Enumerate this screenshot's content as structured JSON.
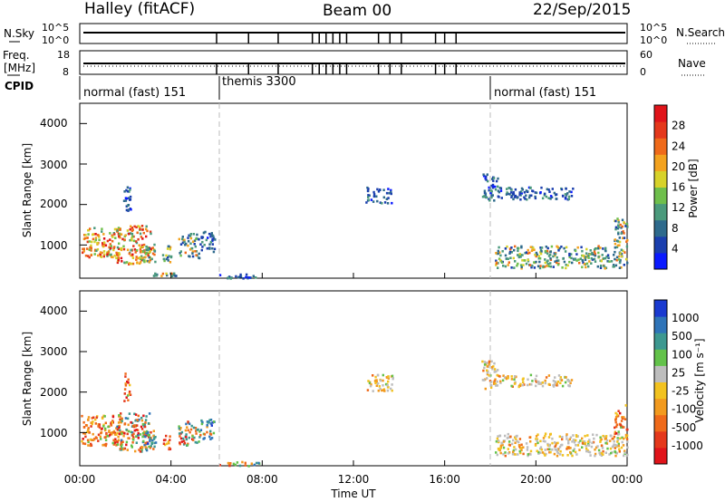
{
  "header": {
    "station": "Halley (fitACF)",
    "beam": "Beam 00",
    "date": "22/Sep/2015"
  },
  "params": {
    "nsky_label": "N.Sky",
    "nsearch_label": "N.Search",
    "nsky_ticks": [
      "10^5",
      "10^0"
    ],
    "nsearch_ticks": [
      "10^5",
      "10^0"
    ],
    "freq_label_1": "Freq.",
    "freq_label_2": "[MHz]",
    "freq_ticks": [
      "18",
      "8"
    ],
    "nave_label": "Nave",
    "nave_ticks": [
      "60",
      "0"
    ],
    "cpid_label": "CPID"
  },
  "modes": [
    {
      "label": "normal (fast) 151",
      "start_hr": 0
    },
    {
      "label": "themis 3300",
      "start_hr": 6
    },
    {
      "label": "normal (fast) 151",
      "start_hr": 18
    }
  ],
  "time_axis": {
    "label": "Time UT",
    "ticks": [
      "00:00",
      "04:00",
      "08:00",
      "12:00",
      "16:00",
      "20:00",
      "00:00"
    ],
    "range_hr": [
      0,
      24
    ]
  },
  "power_panel": {
    "ylabel": "Slant Range [km]",
    "yticks": [
      "1000",
      "2000",
      "3000",
      "4000"
    ],
    "ylim_km": [
      180,
      4500
    ],
    "cbar_label": "Power [dB]",
    "cbar_ticks": [
      "4",
      "8",
      "12",
      "16",
      "20",
      "24",
      "28"
    ],
    "cbar_colors": [
      "#0a1aff",
      "#1b3fae",
      "#2e6a8c",
      "#4b9a7c",
      "#6fbf4c",
      "#d7d22a",
      "#f3a21e",
      "#ef6a1a",
      "#e4381b",
      "#e0141a"
    ]
  },
  "velocity_panel": {
    "ylabel": "Slant Range [km]",
    "yticks": [
      "1000",
      "2000",
      "3000",
      "4000"
    ],
    "ylim_km": [
      180,
      4500
    ],
    "cbar_label": "Velocity [m s⁻¹]",
    "cbar_ticks": [
      "1000",
      "500",
      "100",
      "25",
      "-25",
      "-100",
      "-500",
      "-1000"
    ],
    "cbar_colors": [
      "#1a3ad0",
      "#2f74b8",
      "#3d9890",
      "#63c24a",
      "#bdbdbd",
      "#f2c21f",
      "#f29a1e",
      "#ef6a1a",
      "#e4381b",
      "#e0141a"
    ]
  },
  "chart_data": {
    "type": "heatmap",
    "x_unit": "hours UT",
    "y_unit": "km",
    "power_blobs": [
      {
        "t0": 0.05,
        "t1": 1.8,
        "r0": 700,
        "r1": 1450,
        "mix": "hi"
      },
      {
        "t0": 1.6,
        "t1": 3.1,
        "r0": 550,
        "r1": 1500,
        "mix": "hi"
      },
      {
        "t0": 2.7,
        "t1": 3.3,
        "r0": 600,
        "r1": 1100,
        "mix": "mid"
      },
      {
        "t0": 3.6,
        "t1": 4.0,
        "r0": 600,
        "r1": 1000,
        "mix": "mid"
      },
      {
        "t0": 4.3,
        "t1": 5.2,
        "r0": 700,
        "r1": 1300,
        "mix": "mid"
      },
      {
        "t0": 5.2,
        "t1": 5.9,
        "r0": 850,
        "r1": 1350,
        "mix": "lo"
      },
      {
        "t0": 1.9,
        "t1": 2.2,
        "r0": 1800,
        "r1": 2500,
        "mix": "lo"
      },
      {
        "t0": 3.2,
        "t1": 4.2,
        "r0": 250,
        "r1": 330,
        "mix": "mid"
      },
      {
        "t0": 6.1,
        "t1": 8.0,
        "r0": 200,
        "r1": 300,
        "mix": "lo"
      },
      {
        "t0": 12.5,
        "t1": 13.7,
        "r0": 2050,
        "r1": 2450,
        "mix": "lo"
      },
      {
        "t0": 17.6,
        "t1": 18.3,
        "r0": 2100,
        "r1": 2800,
        "mix": "lo"
      },
      {
        "t0": 18.3,
        "t1": 21.6,
        "r0": 2150,
        "r1": 2450,
        "mix": "lo"
      },
      {
        "t0": 18.2,
        "t1": 24.0,
        "r0": 450,
        "r1": 1000,
        "mix": "mid"
      },
      {
        "t0": 23.4,
        "t1": 24.0,
        "r0": 1000,
        "r1": 1700,
        "mix": "mid"
      }
    ],
    "velocity_blobs": [
      {
        "t0": 0.05,
        "t1": 1.8,
        "r0": 700,
        "r1": 1450,
        "mix": "neg"
      },
      {
        "t0": 1.6,
        "t1": 3.1,
        "r0": 550,
        "r1": 1500,
        "mix": "mixed"
      },
      {
        "t0": 2.7,
        "t1": 3.3,
        "r0": 600,
        "r1": 1100,
        "mix": "pos"
      },
      {
        "t0": 3.6,
        "t1": 4.0,
        "r0": 600,
        "r1": 1000,
        "mix": "neg"
      },
      {
        "t0": 4.3,
        "t1": 5.2,
        "r0": 700,
        "r1": 1300,
        "mix": "mixed"
      },
      {
        "t0": 5.2,
        "t1": 5.9,
        "r0": 850,
        "r1": 1350,
        "mix": "pos"
      },
      {
        "t0": 1.9,
        "t1": 2.2,
        "r0": 1800,
        "r1": 2500,
        "mix": "neg"
      },
      {
        "t0": 6.1,
        "t1": 8.0,
        "r0": 200,
        "r1": 300,
        "mix": "mixed"
      },
      {
        "t0": 12.5,
        "t1": 13.7,
        "r0": 2050,
        "r1": 2450,
        "mix": "low"
      },
      {
        "t0": 17.6,
        "t1": 18.3,
        "r0": 2100,
        "r1": 2800,
        "mix": "low"
      },
      {
        "t0": 18.3,
        "t1": 21.6,
        "r0": 2150,
        "r1": 2450,
        "mix": "low"
      },
      {
        "t0": 18.2,
        "t1": 24.0,
        "r0": 450,
        "r1": 1000,
        "mix": "low"
      },
      {
        "t0": 23.4,
        "t1": 24.0,
        "r0": 1000,
        "r1": 1700,
        "mix": "neg"
      }
    ],
    "nsky_gaps_hr": [
      6.0,
      7.4,
      8.7,
      10.2,
      10.5,
      10.8,
      11.1,
      11.4,
      11.7,
      13.1,
      13.6,
      14.1,
      15.6,
      16.0,
      16.5
    ]
  }
}
